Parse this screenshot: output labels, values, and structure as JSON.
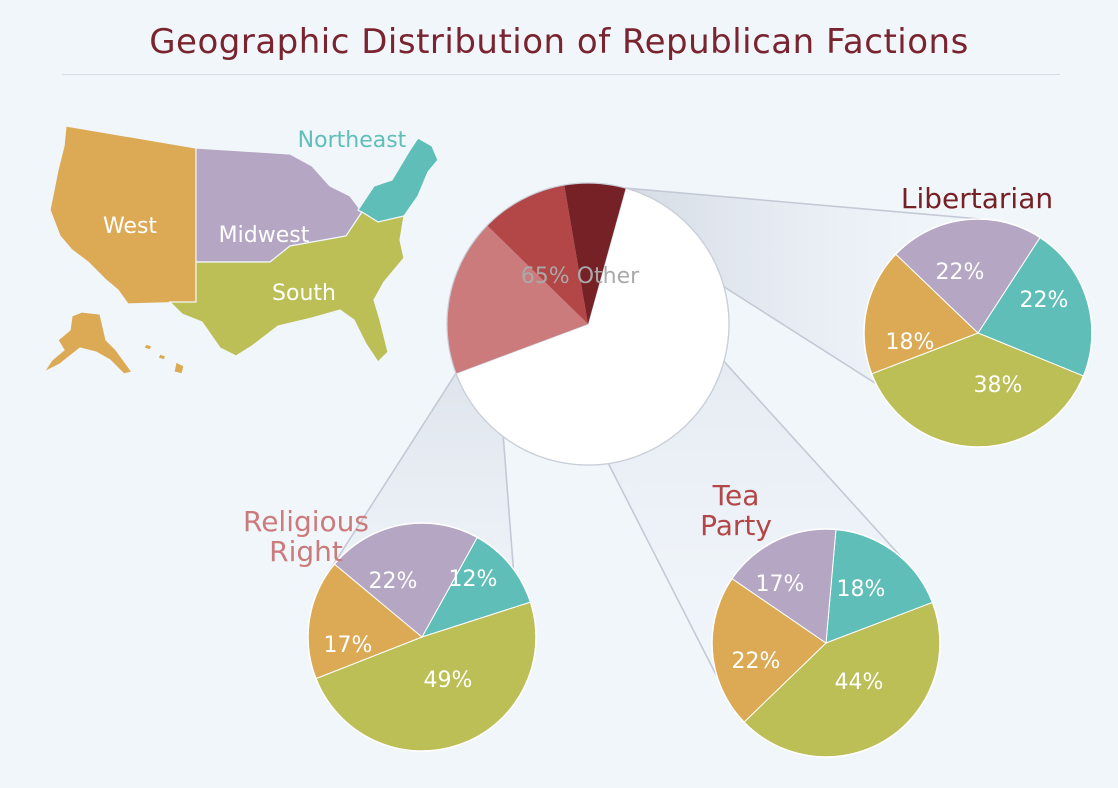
{
  "title": "Geographic Distribution of Republican Factions",
  "colors": {
    "background": "#f1f6fb",
    "title": "#7a2430",
    "west": "#dcaa55",
    "midwest": "#b5a6c3",
    "northeast": "#5fbfb8",
    "south": "#bcbe56",
    "other": "#ffffff",
    "religious_right": "#cb7b7b",
    "tea_party": "#b34646",
    "libertarian": "#762125",
    "connector": "#c4c9d6",
    "other_label": "#a9a9a9"
  },
  "map": {
    "regions": [
      {
        "key": "west",
        "label": "West"
      },
      {
        "key": "midwest",
        "label": "Midwest"
      },
      {
        "key": "northeast",
        "label": "Northeast"
      },
      {
        "key": "south",
        "label": "South"
      }
    ]
  },
  "chart_data": [
    {
      "type": "pie",
      "name": "overall",
      "slices": [
        {
          "key": "other",
          "value": 65,
          "label": "65% Other"
        },
        {
          "key": "religious_right",
          "value": 18,
          "label": "18%"
        },
        {
          "key": "tea_party",
          "value": 10,
          "label": "10%"
        },
        {
          "key": "libertarian",
          "value": 7,
          "label": "7%"
        }
      ]
    },
    {
      "type": "pie",
      "key": "libertarian",
      "title": "Libertarian",
      "slices": [
        {
          "region": "northeast",
          "value": 22,
          "label": "22%"
        },
        {
          "region": "south",
          "value": 38,
          "label": "38%"
        },
        {
          "region": "west",
          "value": 18,
          "label": "18%"
        },
        {
          "region": "midwest",
          "value": 22,
          "label": "22%"
        }
      ]
    },
    {
      "type": "pie",
      "key": "religious_right",
      "title": "Religious Right",
      "title_lines": [
        "Religious",
        "Right"
      ],
      "slices": [
        {
          "region": "northeast",
          "value": 12,
          "label": "12%"
        },
        {
          "region": "south",
          "value": 49,
          "label": "49%"
        },
        {
          "region": "west",
          "value": 17,
          "label": "17%"
        },
        {
          "region": "midwest",
          "value": 22,
          "label": "22%"
        }
      ]
    },
    {
      "type": "pie",
      "key": "tea_party",
      "title": "Tea Party",
      "title_lines": [
        "Tea",
        "Party"
      ],
      "slices": [
        {
          "region": "northeast",
          "value": 18,
          "label": "18%"
        },
        {
          "region": "south",
          "value": 44,
          "label": "44%"
        },
        {
          "region": "west",
          "value": 22,
          "label": "22%"
        },
        {
          "region": "midwest",
          "value": 17,
          "label": "17%"
        }
      ]
    }
  ]
}
